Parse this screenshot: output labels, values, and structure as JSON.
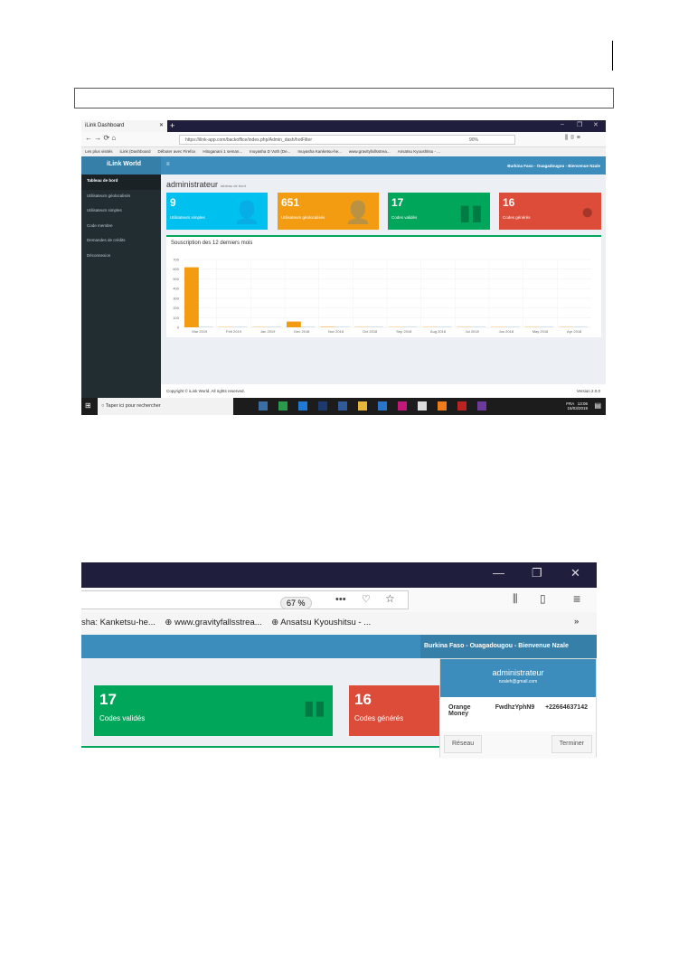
{
  "screenshot1": {
    "browser": {
      "tab_title": "iLink Dashboard",
      "url": "https://ilink-app.com/backoffice/index.php/Admin_dash/hotFilter",
      "zoom": "90%",
      "bookmarks": [
        "Les plus visités",
        "iLink (Dashboard",
        "Débuter avec Firefox",
        "Hitoganani 1 seman...",
        "Inuyasha D Voth (De...",
        "Inuyasha Kanketsu-he...",
        "www.gravityfallsstrea...",
        "Ansatsu Kyoushitsu - ..."
      ]
    },
    "app": {
      "brand": "iLink World",
      "header_right": "Burkina Faso - Ouagadougou - Bienvenue Nzale",
      "sidebar": [
        "Tableau de bord",
        "Utilisateurs géolocalisés",
        "Utilisateurs simples",
        "Code membre",
        "Demandes de crédits",
        "Déconnexion"
      ],
      "title": "administrateur",
      "subtitle": "tableau de bord",
      "stats": [
        {
          "value": "9",
          "label": "Utilisateurs simples",
          "color": "#00c0ef"
        },
        {
          "value": "651",
          "label": "Utilisateurs géolocalisés",
          "color": "#f39c12"
        },
        {
          "value": "17",
          "label": "Codes validés",
          "color": "#00a65a"
        },
        {
          "value": "16",
          "label": "Codes générés",
          "color": "#dd4b39"
        }
      ],
      "chart_title": "Souscription des 12 derniers mois",
      "footer_copyright": "Copyright © iLink World. All rights reserved.",
      "footer_version": "Version 2.0.0"
    },
    "taskbar": {
      "search": "Taper ici pour rechercher",
      "lang": "FRA",
      "time": "13:06",
      "date": "15/03/2019"
    }
  },
  "chart_data": {
    "type": "bar",
    "categories": [
      "Mar 2019",
      "Feb 2019",
      "Jan 2019",
      "Dec 2018",
      "Nov 2018",
      "Oct 2018",
      "Sep 2018",
      "Aug 2018",
      "Jul 2018",
      "Jun 2018",
      "May 2018",
      "Apr 2018"
    ],
    "series": [
      {
        "values": [
          620,
          3,
          3,
          60,
          5,
          3,
          3,
          3,
          3,
          3,
          3,
          3
        ],
        "color": "#f39c12"
      },
      {
        "values": [
          2,
          2,
          2,
          2,
          2,
          2,
          2,
          2,
          2,
          2,
          2,
          2
        ],
        "color": "#3c8dbc"
      }
    ],
    "yticks": [
      0,
      100,
      200,
      300,
      400,
      500,
      600,
      700
    ],
    "ylim": [
      0,
      700
    ],
    "grid": true
  },
  "screenshot2": {
    "zoom": "67 %",
    "bookmarks": [
      "sha: Kanketsu-he...",
      "www.gravityfallsstrea...",
      "Ansatsu Kyoushitsu - ..."
    ],
    "header_right": "Burkina Faso - Ouagadougou - Bienvenue Nzale",
    "stats": [
      {
        "value": "17",
        "label": "Codes validés"
      },
      {
        "value": "16",
        "label": "Codes générés"
      }
    ],
    "dropdown": {
      "name": "administrateur",
      "email": "nzaleh@gmail.com",
      "network": "Orange Money",
      "code": "FwdhzYphN9",
      "phone": "+22664637142",
      "left_button": "Réseau",
      "right_button": "Terminer"
    }
  }
}
